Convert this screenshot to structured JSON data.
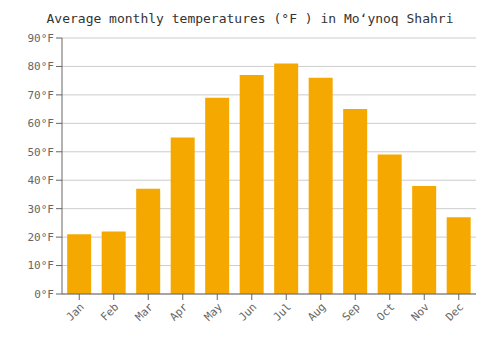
{
  "chart_data": {
    "type": "bar",
    "title": "Average monthly temperatures (°F ) in Moʻynoq Shahri",
    "categories": [
      "Jan",
      "Feb",
      "Mar",
      "Apr",
      "May",
      "Jun",
      "Jul",
      "Aug",
      "Sep",
      "Oct",
      "Nov",
      "Dec"
    ],
    "values": [
      21,
      22,
      37,
      55,
      69,
      77,
      81,
      76,
      65,
      49,
      38,
      27
    ],
    "color": "#F5A800",
    "ylim": [
      0,
      90
    ],
    "yticks": [
      {
        "value": 0,
        "label": "0°F"
      },
      {
        "value": 10,
        "label": "10°F"
      },
      {
        "value": 20,
        "label": "20°F"
      },
      {
        "value": 30,
        "label": "30°F"
      },
      {
        "value": 40,
        "label": "40°F"
      },
      {
        "value": 50,
        "label": "50°F"
      },
      {
        "value": 60,
        "label": "60°F"
      },
      {
        "value": 70,
        "label": "70°F"
      },
      {
        "value": 80,
        "label": "80°F"
      },
      {
        "value": 90,
        "label": "90°F"
      }
    ],
    "grid": true
  }
}
